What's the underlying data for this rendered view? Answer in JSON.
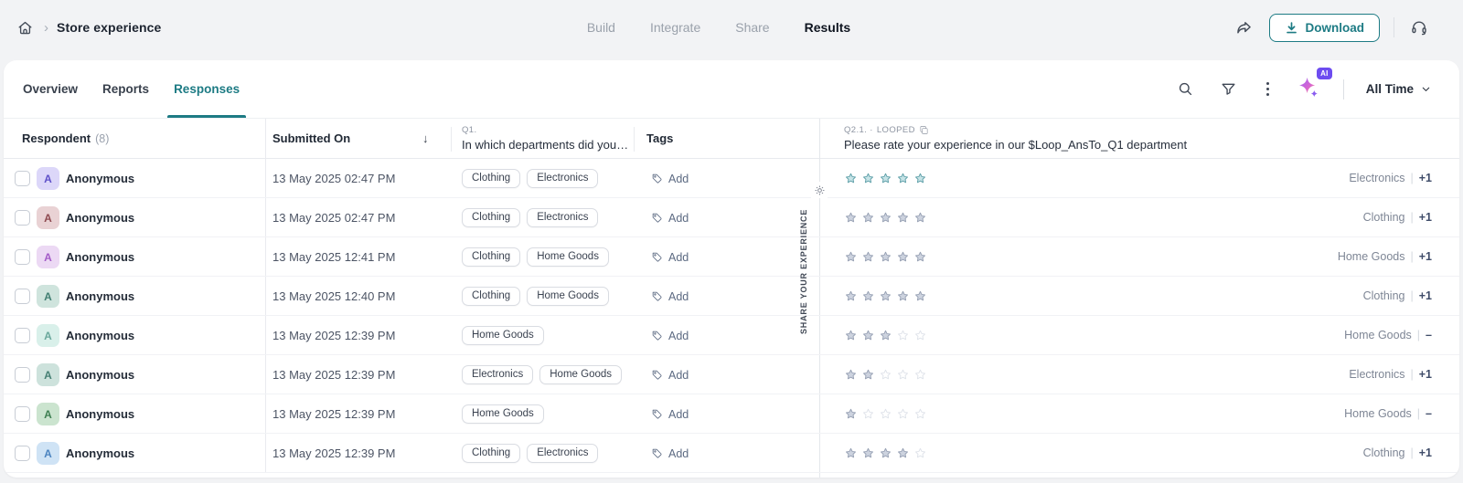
{
  "topbar": {
    "title": "Store experience",
    "nav": [
      {
        "label": "Build",
        "active": false
      },
      {
        "label": "Integrate",
        "active": false
      },
      {
        "label": "Share",
        "active": false
      },
      {
        "label": "Results",
        "active": true
      }
    ],
    "download_label": "Download"
  },
  "toolbar": {
    "tabs": [
      {
        "label": "Overview",
        "active": false
      },
      {
        "label": "Reports",
        "active": false
      },
      {
        "label": "Responses",
        "active": true
      }
    ],
    "ai_badge": "AI",
    "time_filter": "All Time"
  },
  "survey_panel": {
    "vertical_label": "SHARE YOUR EXPERIENCE"
  },
  "table": {
    "headers": {
      "respondent": "Respondent",
      "respondent_count": "(8)",
      "submitted_on": "Submitted On",
      "q1_label": "Q1.",
      "q1_question": "In which departments did you…",
      "tags": "Tags",
      "q2_label": "Q2.1. ·",
      "q2_looped": "LOOPED",
      "q2_question": "Please rate your experience in our $Loop_AnsTo_Q1 department"
    },
    "add_tag_label": "Add",
    "rating_separator": "|",
    "rows": [
      {
        "name": "Anonymous",
        "initial": "A",
        "avatar_bg": "#DCD7F9",
        "avatar_fg": "#5F51C9",
        "submitted": "13 May 2025 02:47 PM",
        "departments": [
          "Clothing",
          "Electronics"
        ],
        "rating": 5,
        "rating_style": "teal",
        "dept_label": "Electronics",
        "dept_extra": "+1"
      },
      {
        "name": "Anonymous",
        "initial": "A",
        "avatar_bg": "#E9D2D4",
        "avatar_fg": "#8E4A50",
        "submitted": "13 May 2025 02:47 PM",
        "departments": [
          "Clothing",
          "Electronics"
        ],
        "rating": 5,
        "rating_style": "gray",
        "dept_label": "Clothing",
        "dept_extra": "+1"
      },
      {
        "name": "Anonymous",
        "initial": "A",
        "avatar_bg": "#ECD9F4",
        "avatar_fg": "#A45CC8",
        "submitted": "13 May 2025 12:41 PM",
        "departments": [
          "Clothing",
          "Home Goods"
        ],
        "rating": 5,
        "rating_style": "gray",
        "dept_label": "Home Goods",
        "dept_extra": "+1"
      },
      {
        "name": "Anonymous",
        "initial": "A",
        "avatar_bg": "#CFE4DD",
        "avatar_fg": "#417F72",
        "submitted": "13 May 2025 12:40 PM",
        "departments": [
          "Clothing",
          "Home Goods"
        ],
        "rating": 5,
        "rating_style": "gray",
        "dept_label": "Clothing",
        "dept_extra": "+1"
      },
      {
        "name": "Anonymous",
        "initial": "A",
        "avatar_bg": "#D9F0EA",
        "avatar_fg": "#6AA89C",
        "submitted": "13 May 2025 12:39 PM",
        "departments": [
          "Home Goods"
        ],
        "rating": 3,
        "rating_style": "gray",
        "dept_label": "Home Goods",
        "dept_extra": "–"
      },
      {
        "name": "Anonymous",
        "initial": "A",
        "avatar_bg": "#CDE2DC",
        "avatar_fg": "#457F73",
        "submitted": "13 May 2025 12:39 PM",
        "departments": [
          "Electronics",
          "Home Goods"
        ],
        "rating": 2,
        "rating_style": "gray",
        "dept_label": "Electronics",
        "dept_extra": "+1"
      },
      {
        "name": "Anonymous",
        "initial": "A",
        "avatar_bg": "#CBE4CF",
        "avatar_fg": "#3E7F52",
        "submitted": "13 May 2025 12:39 PM",
        "departments": [
          "Home Goods"
        ],
        "rating": 1,
        "rating_style": "gray",
        "dept_label": "Home Goods",
        "dept_extra": "–"
      },
      {
        "name": "Anonymous",
        "initial": "A",
        "avatar_bg": "#CFE3F5",
        "avatar_fg": "#4C84C0",
        "submitted": "13 May 2025 12:39 PM",
        "departments": [
          "Clothing",
          "Electronics"
        ],
        "rating": 4,
        "rating_style": "gray",
        "dept_label": "Clothing",
        "dept_extra": "+1"
      }
    ]
  },
  "colors": {
    "accent": "#1D7B84",
    "star_teal_fill": "#C7E4E7",
    "star_teal_stroke": "#5E9FA8",
    "star_filled_fill": "#CDD3DF",
    "star_filled_stroke": "#97A1B4",
    "star_empty_stroke": "#DFE3EA"
  }
}
